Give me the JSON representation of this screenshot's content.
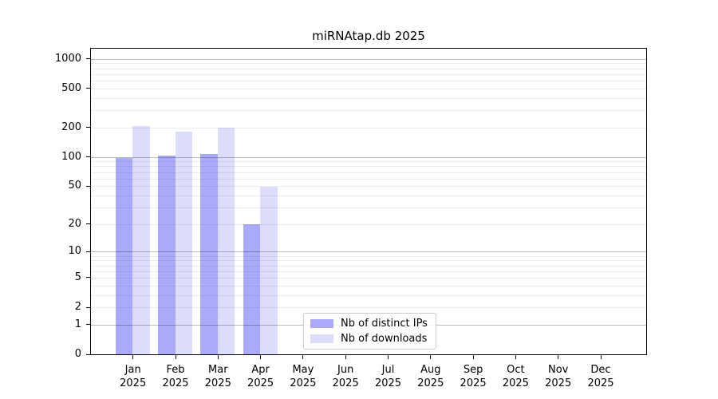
{
  "title": "miRNAtap.db 2025",
  "chart_data": {
    "type": "bar",
    "title": "miRNAtap.db 2025",
    "categories": [
      "Jan",
      "Feb",
      "Mar",
      "Apr",
      "May",
      "Jun",
      "Jul",
      "Aug",
      "Sep",
      "Oct",
      "Nov",
      "Dec"
    ],
    "year": "2025",
    "series": [
      {
        "name": "Nb of distinct IPs",
        "color": "#aaaafb",
        "values": [
          97,
          103,
          107,
          20,
          0,
          0,
          0,
          0,
          0,
          0,
          0,
          0
        ]
      },
      {
        "name": "Nb of downloads",
        "color": "#dcdcfb",
        "values": [
          205,
          181,
          200,
          49,
          0,
          0,
          0,
          0,
          0,
          0,
          0,
          0
        ]
      }
    ],
    "y_ticks": [
      0,
      1,
      2,
      5,
      10,
      20,
      50,
      100,
      200,
      500,
      1000
    ],
    "y_major_gridlines": [
      1,
      10,
      100,
      1000
    ],
    "y_scale": "log10(value+1)",
    "y_max": 1265,
    "ylim": [
      0,
      1265
    ],
    "grid": true,
    "legend_position": "lower center",
    "colors": {
      "spine": "#000000",
      "major_grid": "#bfbfbf",
      "minor_grid": "#ededed",
      "background": "#ffffff"
    }
  },
  "legend": {
    "items": [
      {
        "label": "Nb of distinct IPs",
        "color": "#aaaafb"
      },
      {
        "label": "Nb of downloads",
        "color": "#dcdcfb"
      }
    ]
  }
}
